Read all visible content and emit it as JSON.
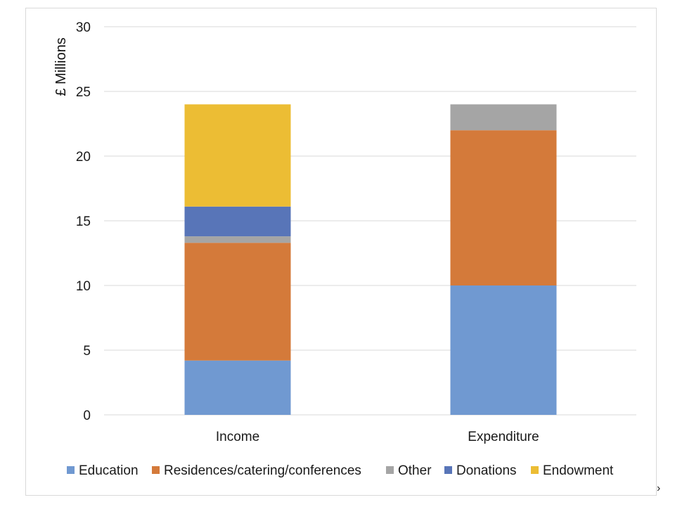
{
  "chart_data": {
    "type": "bar",
    "stacked": true,
    "title": "",
    "xlabel": "",
    "ylabel": "£ Millions",
    "ylim": [
      0,
      30
    ],
    "yticks": [
      0,
      5,
      10,
      15,
      20,
      25,
      30
    ],
    "grid": true,
    "legend_position": "bottom",
    "categories": [
      "Income",
      "Expenditure"
    ],
    "series": [
      {
        "name": "Education",
        "color": "#7099d1",
        "values": [
          4.2,
          10.0
        ]
      },
      {
        "name": "Residences/catering/conferences",
        "color": "#d47a3a",
        "values": [
          9.1,
          12.0
        ]
      },
      {
        "name": "Other",
        "color": "#a5a5a5",
        "values": [
          0.5,
          2.0
        ]
      },
      {
        "name": "Donations",
        "color": "#5875b8",
        "values": [
          2.3,
          0
        ]
      },
      {
        "name": "Endowment",
        "color": "#ecbd34",
        "values": [
          7.9,
          0
        ]
      }
    ]
  }
}
